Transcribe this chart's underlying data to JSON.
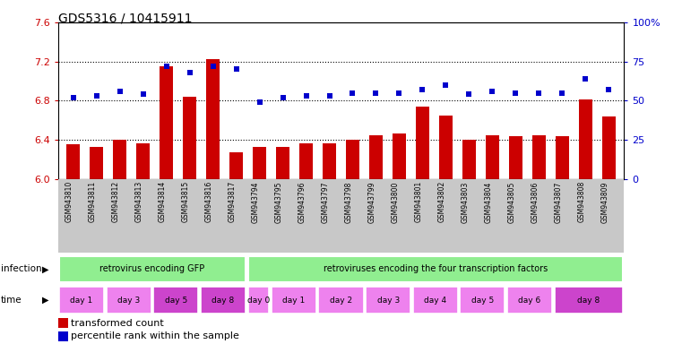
{
  "title": "GDS5316 / 10415911",
  "samples": [
    "GSM943810",
    "GSM943811",
    "GSM943812",
    "GSM943813",
    "GSM943814",
    "GSM943815",
    "GSM943816",
    "GSM943817",
    "GSM943794",
    "GSM943795",
    "GSM943796",
    "GSM943797",
    "GSM943798",
    "GSM943799",
    "GSM943800",
    "GSM943801",
    "GSM943802",
    "GSM943803",
    "GSM943804",
    "GSM943805",
    "GSM943806",
    "GSM943807",
    "GSM943808",
    "GSM943809"
  ],
  "red_values": [
    6.35,
    6.33,
    6.4,
    6.36,
    7.15,
    6.84,
    7.22,
    6.27,
    6.33,
    6.33,
    6.36,
    6.36,
    6.4,
    6.45,
    6.46,
    6.74,
    6.65,
    6.4,
    6.45,
    6.44,
    6.45,
    6.44,
    6.81,
    6.64
  ],
  "blue_values": [
    52,
    53,
    56,
    54,
    72,
    68,
    72,
    70,
    49,
    52,
    53,
    53,
    55,
    55,
    55,
    57,
    60,
    54,
    56,
    55,
    55,
    55,
    64,
    57
  ],
  "ylim_left": [
    6.0,
    7.6
  ],
  "ylim_right": [
    0,
    100
  ],
  "yticks_left": [
    6.0,
    6.4,
    6.8,
    7.2,
    7.6
  ],
  "yticks_right": [
    0,
    25,
    50,
    75,
    100
  ],
  "ytick_labels_right": [
    "0",
    "25",
    "50",
    "75",
    "100%"
  ],
  "bar_color": "#cc0000",
  "dot_color": "#0000cc",
  "background_color": "#ffffff",
  "tick_label_color_left": "#cc0000",
  "tick_label_color_right": "#0000cc",
  "infection_label1": "retrovirus encoding GFP",
  "infection_label2": "retroviruses encoding the four transcription factors",
  "infection_color": "#90ee90",
  "xlabels_bg": "#c8c8c8",
  "time_groups": [
    {
      "label": "day 1",
      "start": 0,
      "end": 2,
      "color": "#ee82ee"
    },
    {
      "label": "day 3",
      "start": 2,
      "end": 4,
      "color": "#ee82ee"
    },
    {
      "label": "day 5",
      "start": 4,
      "end": 6,
      "color": "#cc44cc"
    },
    {
      "label": "day 8",
      "start": 6,
      "end": 8,
      "color": "#cc44cc"
    },
    {
      "label": "day 0",
      "start": 8,
      "end": 9,
      "color": "#ee82ee"
    },
    {
      "label": "day 1",
      "start": 9,
      "end": 11,
      "color": "#ee82ee"
    },
    {
      "label": "day 2",
      "start": 11,
      "end": 13,
      "color": "#ee82ee"
    },
    {
      "label": "day 3",
      "start": 13,
      "end": 15,
      "color": "#ee82ee"
    },
    {
      "label": "day 4",
      "start": 15,
      "end": 17,
      "color": "#ee82ee"
    },
    {
      "label": "day 5",
      "start": 17,
      "end": 19,
      "color": "#ee82ee"
    },
    {
      "label": "day 6",
      "start": 19,
      "end": 21,
      "color": "#ee82ee"
    },
    {
      "label": "day 8",
      "start": 21,
      "end": 24,
      "color": "#cc44cc"
    }
  ],
  "legend_red_label": "transformed count",
  "legend_blue_label": "percentile rank within the sample"
}
